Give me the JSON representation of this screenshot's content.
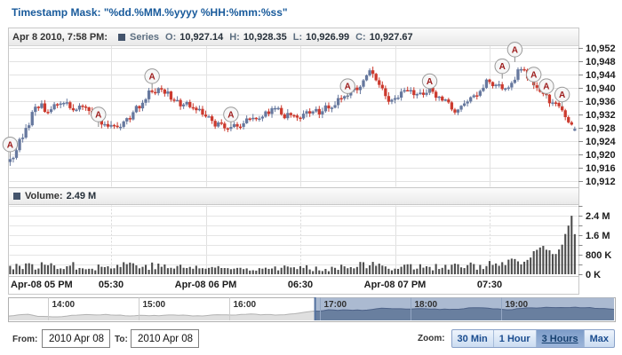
{
  "title": "Timestamp Mask: \"%dd.%MM.%yyyy %HH:%mm:%ss\"",
  "price_panel": {
    "datetime": "Apr 8 2010, 7:58 PM:",
    "series_name": "Series",
    "swatch_color": "#44546c",
    "ohlc": [
      {
        "label": "O:",
        "value": "10,927.14"
      },
      {
        "label": "H:",
        "value": "10,928.35"
      },
      {
        "label": "L:",
        "value": "10,926.99"
      },
      {
        "label": "C:",
        "value": "10,927.67"
      }
    ]
  },
  "volume_panel": {
    "label": "Volume:",
    "value": "2.49 M",
    "swatch_color": "#44546c"
  },
  "chart_data": [
    {
      "type": "candlestick",
      "name": "Series",
      "last_ohlc": {
        "o": 10927.14,
        "h": 10928.35,
        "l": 10926.99,
        "c": 10927.67
      },
      "ylim": [
        10912,
        10952
      ],
      "y_tick_step": 4,
      "y_ticks": [
        "10,952",
        "10,948",
        "10,944",
        "10,940",
        "10,936",
        "10,932",
        "10,928",
        "10,924",
        "10,920",
        "10,916",
        "10,912"
      ],
      "x_ticks": [
        {
          "minute": 0,
          "label": "Apr-08 05 PM",
          "align": "left",
          "grid": false
        },
        {
          "minute": 30,
          "label": "05:30",
          "grid": true,
          "minor": true
        },
        {
          "minute": 60,
          "label": "Apr-08 06 PM",
          "grid": true
        },
        {
          "minute": 90,
          "label": "06:30",
          "grid": true,
          "minor": true
        },
        {
          "minute": 120,
          "label": "Apr-08 07 PM",
          "grid": true
        },
        {
          "minute": 150,
          "label": "07:30",
          "grid": true,
          "minor": true
        }
      ],
      "candle_count": 180,
      "start_minute": -2,
      "price_anchors": [
        [
          -2,
          10919
        ],
        [
          0,
          10923
        ],
        [
          3,
          10927
        ],
        [
          5,
          10931
        ],
        [
          6,
          10934
        ],
        [
          10,
          10933
        ],
        [
          13,
          10935
        ],
        [
          18,
          10934
        ],
        [
          22,
          10933
        ],
        [
          24,
          10931
        ],
        [
          26,
          10930
        ],
        [
          30,
          10928.5
        ],
        [
          33,
          10929
        ],
        [
          36,
          10931
        ],
        [
          40,
          10935
        ],
        [
          43,
          10939
        ],
        [
          45,
          10939.5
        ],
        [
          48,
          10938
        ],
        [
          52,
          10936
        ],
        [
          56,
          10933.5
        ],
        [
          60,
          10931
        ],
        [
          64,
          10928.5
        ],
        [
          66,
          10927
        ],
        [
          68,
          10928
        ],
        [
          72,
          10929
        ],
        [
          76,
          10930.5
        ],
        [
          80,
          10932
        ],
        [
          82,
          10933.5
        ],
        [
          84,
          10932.5
        ],
        [
          88,
          10931
        ],
        [
          92,
          10931.5
        ],
        [
          95,
          10933
        ],
        [
          98,
          10934
        ],
        [
          101,
          10935.5
        ],
        [
          104,
          10937.5
        ],
        [
          106,
          10938.5
        ],
        [
          108,
          10940
        ],
        [
          110,
          10944
        ],
        [
          112,
          10945.5
        ],
        [
          114,
          10943
        ],
        [
          116,
          10939.5
        ],
        [
          118,
          10937
        ],
        [
          121,
          10938.5
        ],
        [
          123,
          10940
        ],
        [
          126,
          10938.5
        ],
        [
          129,
          10937.5
        ],
        [
          131,
          10938.5
        ],
        [
          134,
          10936.5
        ],
        [
          137,
          10935
        ],
        [
          139,
          10933.8
        ],
        [
          142,
          10935
        ],
        [
          145,
          10937.5
        ],
        [
          148,
          10940.5
        ],
        [
          150,
          10941.8
        ],
        [
          152,
          10940.5
        ],
        [
          154,
          10940
        ],
        [
          156,
          10941.5
        ],
        [
          158,
          10943.5
        ],
        [
          159,
          10946
        ],
        [
          160,
          10947.5
        ],
        [
          162,
          10945
        ],
        [
          164,
          10941
        ],
        [
          165,
          10940.5
        ],
        [
          166,
          10939
        ],
        [
          168,
          10937.2
        ],
        [
          170,
          10935.5
        ],
        [
          172,
          10934.5
        ],
        [
          174,
          10933
        ],
        [
          175,
          10931
        ],
        [
          176,
          10929.5
        ],
        [
          177,
          10927.6
        ]
      ],
      "annotations": [
        {
          "minute": -2,
          "price": 10923,
          "letter": "A"
        },
        {
          "minute": 26,
          "price": 10932,
          "letter": "A"
        },
        {
          "minute": 43,
          "price": 10943.5,
          "letter": "A"
        },
        {
          "minute": 68,
          "price": 10932,
          "letter": "A"
        },
        {
          "minute": 105,
          "price": 10940.5,
          "letter": "A"
        },
        {
          "minute": 131,
          "price": 10942,
          "letter": "A"
        },
        {
          "minute": 154,
          "price": 10946.5,
          "letter": "A"
        },
        {
          "minute": 158,
          "price": 10951.5,
          "letter": "A"
        },
        {
          "minute": 164,
          "price": 10944,
          "letter": "A"
        },
        {
          "minute": 168,
          "price": 10940.5,
          "letter": "A"
        },
        {
          "minute": 173,
          "price": 10938,
          "letter": "A"
        }
      ],
      "colors": {
        "up": "#66789e",
        "down": "#cc3a2e"
      }
    },
    {
      "type": "bar",
      "name": "Volume",
      "current": "2.49 M",
      "ymax_k": 2800,
      "tick_step_k": 400,
      "y_ticks": [
        {
          "value": 0,
          "label": "0 K"
        },
        {
          "value": 800,
          "label": "800 K"
        },
        {
          "value": 1600,
          "label": "1.6 M"
        },
        {
          "value": 2400,
          "label": "2.4 M"
        }
      ],
      "volume_anchors": [
        [
          -2,
          380
        ],
        [
          5,
          330
        ],
        [
          12,
          400
        ],
        [
          20,
          330
        ],
        [
          30,
          300
        ],
        [
          35,
          450
        ],
        [
          45,
          320
        ],
        [
          55,
          290
        ],
        [
          62,
          270
        ],
        [
          70,
          240
        ],
        [
          80,
          300
        ],
        [
          90,
          260
        ],
        [
          100,
          240
        ],
        [
          105,
          420
        ],
        [
          110,
          390
        ],
        [
          118,
          310
        ],
        [
          126,
          340
        ],
        [
          134,
          300
        ],
        [
          142,
          330
        ],
        [
          150,
          390
        ],
        [
          156,
          420
        ],
        [
          160,
          520
        ],
        [
          164,
          700
        ],
        [
          167,
          1150
        ],
        [
          169,
          950
        ],
        [
          171,
          800
        ],
        [
          173,
          1300
        ],
        [
          175,
          1900
        ],
        [
          176,
          2400
        ],
        [
          177,
          1650
        ]
      ],
      "color": "#4d4d4d"
    },
    {
      "type": "area",
      "role": "navigator",
      "x_ticks": [
        {
          "f": 0.0646,
          "label": "14:00"
        },
        {
          "f": 0.2144,
          "label": "15:00"
        },
        {
          "f": 0.3642,
          "label": "16:00"
        },
        {
          "f": 0.514,
          "label": "17:00"
        },
        {
          "f": 0.6638,
          "label": "18:00"
        },
        {
          "f": 0.8136,
          "label": "19:00"
        }
      ],
      "selection": [
        0.506,
        1.0
      ],
      "profile": [
        [
          0,
          5
        ],
        [
          0.03,
          8
        ],
        [
          0.05,
          4
        ],
        [
          0.1,
          5
        ],
        [
          0.14,
          7
        ],
        [
          0.2,
          5
        ],
        [
          0.25,
          6
        ],
        [
          0.3,
          5
        ],
        [
          0.35,
          6
        ],
        [
          0.4,
          7
        ],
        [
          0.45,
          6
        ],
        [
          0.48,
          8
        ],
        [
          0.5,
          10
        ],
        [
          0.53,
          12
        ],
        [
          0.56,
          11
        ],
        [
          0.6,
          12
        ],
        [
          0.63,
          14
        ],
        [
          0.66,
          12
        ],
        [
          0.7,
          13
        ],
        [
          0.73,
          12
        ],
        [
          0.77,
          15
        ],
        [
          0.8,
          13
        ],
        [
          0.83,
          12
        ],
        [
          0.86,
          15
        ],
        [
          0.9,
          14
        ],
        [
          0.93,
          15
        ],
        [
          0.97,
          14
        ],
        [
          1,
          13
        ]
      ],
      "colors": {
        "unsel_fill": "#dfdfdf",
        "unsel_line": "#b2b2b2",
        "sel_bg": "#abbad1",
        "sel_fill": "#697f9f",
        "sel_line": "#4d6288"
      }
    }
  ],
  "controls": {
    "from_label": "From:",
    "from_value": "2010 Apr 08",
    "to_label": "To:",
    "to_value": "2010 Apr 08",
    "zoom_label": "Zoom:",
    "zoom_buttons": [
      {
        "label": "30 Min",
        "active": false
      },
      {
        "label": "1 Hour",
        "active": false
      },
      {
        "label": "3 Hours",
        "active": true
      },
      {
        "label": "Max",
        "active": false
      }
    ]
  }
}
